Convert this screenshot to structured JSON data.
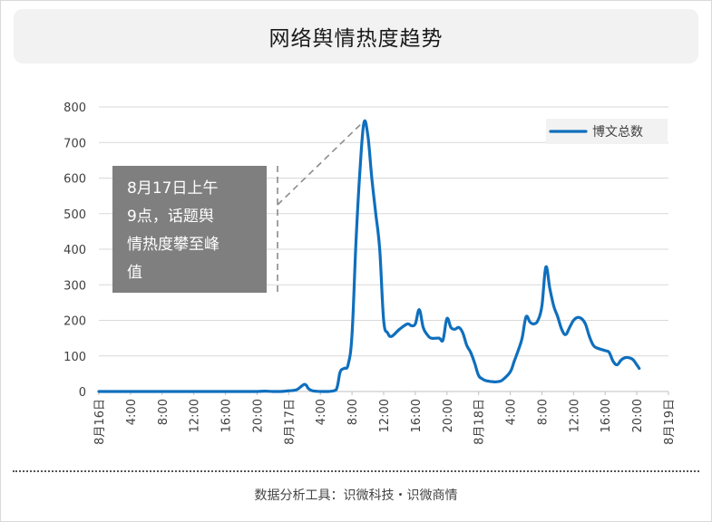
{
  "chart_data": {
    "type": "line",
    "title": "网络舆情热度趋势",
    "xlabel": "",
    "ylabel": "",
    "ylim": [
      0,
      800
    ],
    "yticks": [
      0,
      100,
      200,
      300,
      400,
      500,
      600,
      700,
      800
    ],
    "grid": true,
    "legend_position": "top-right",
    "x_unit": "hour offset from 8月16日 0:00",
    "xlim": [
      0,
      72
    ],
    "xtick_labels": [
      {
        "x": 0,
        "label": "8月16日"
      },
      {
        "x": 4,
        "label": "4:00"
      },
      {
        "x": 8,
        "label": "8:00"
      },
      {
        "x": 12,
        "label": "12:00"
      },
      {
        "x": 16,
        "label": "16:00"
      },
      {
        "x": 20,
        "label": "20:00"
      },
      {
        "x": 24,
        "label": "8月17日"
      },
      {
        "x": 28,
        "label": "4:00"
      },
      {
        "x": 32,
        "label": "8:00"
      },
      {
        "x": 36,
        "label": "12:00"
      },
      {
        "x": 40,
        "label": "16:00"
      },
      {
        "x": 44,
        "label": "20:00"
      },
      {
        "x": 48,
        "label": "8月18日"
      },
      {
        "x": 52,
        "label": "4:00"
      },
      {
        "x": 56,
        "label": "8:00"
      },
      {
        "x": 60,
        "label": "12:00"
      },
      {
        "x": 64,
        "label": "16:00"
      },
      {
        "x": 68,
        "label": "20:00"
      },
      {
        "x": 72,
        "label": "8月19日"
      }
    ],
    "series": [
      {
        "name": "博文总数",
        "color": "#0f6fbd",
        "points": [
          [
            0,
            0
          ],
          [
            2,
            0
          ],
          [
            4,
            0
          ],
          [
            6,
            0
          ],
          [
            8,
            0
          ],
          [
            10,
            0
          ],
          [
            12,
            0
          ],
          [
            14,
            0
          ],
          [
            16,
            0
          ],
          [
            18,
            0
          ],
          [
            20,
            0
          ],
          [
            21,
            1
          ],
          [
            22,
            0
          ],
          [
            23,
            0
          ],
          [
            24,
            2
          ],
          [
            25,
            5
          ],
          [
            26,
            20
          ],
          [
            26.5,
            8
          ],
          [
            27,
            2
          ],
          [
            28,
            0
          ],
          [
            29,
            0
          ],
          [
            30,
            5
          ],
          [
            30.5,
            55
          ],
          [
            31,
            65
          ],
          [
            31.5,
            75
          ],
          [
            32,
            160
          ],
          [
            32.5,
            420
          ],
          [
            33,
            620
          ],
          [
            33.5,
            755
          ],
          [
            34,
            720
          ],
          [
            34.5,
            600
          ],
          [
            35,
            500
          ],
          [
            35.5,
            400
          ],
          [
            36,
            200
          ],
          [
            36.5,
            165
          ],
          [
            37,
            155
          ],
          [
            38,
            175
          ],
          [
            39,
            190
          ],
          [
            39.5,
            185
          ],
          [
            40,
            190
          ],
          [
            40.5,
            230
          ],
          [
            41,
            180
          ],
          [
            41.5,
            160
          ],
          [
            42,
            150
          ],
          [
            43,
            150
          ],
          [
            43.5,
            145
          ],
          [
            44,
            205
          ],
          [
            44.5,
            180
          ],
          [
            45,
            175
          ],
          [
            45.5,
            180
          ],
          [
            46,
            165
          ],
          [
            46.5,
            130
          ],
          [
            47,
            110
          ],
          [
            47.5,
            80
          ],
          [
            48,
            45
          ],
          [
            48.5,
            35
          ],
          [
            49,
            30
          ],
          [
            50,
            27
          ],
          [
            50.5,
            28
          ],
          [
            51,
            32
          ],
          [
            52,
            55
          ],
          [
            52.5,
            85
          ],
          [
            53,
            115
          ],
          [
            53.5,
            150
          ],
          [
            54,
            210
          ],
          [
            54.5,
            195
          ],
          [
            55,
            190
          ],
          [
            55.5,
            200
          ],
          [
            56,
            240
          ],
          [
            56.5,
            350
          ],
          [
            57,
            290
          ],
          [
            57.5,
            240
          ],
          [
            58,
            210
          ],
          [
            58.5,
            175
          ],
          [
            59,
            160
          ],
          [
            59.5,
            180
          ],
          [
            60,
            200
          ],
          [
            60.5,
            208
          ],
          [
            61,
            205
          ],
          [
            61.5,
            190
          ],
          [
            62,
            155
          ],
          [
            62.5,
            130
          ],
          [
            63,
            122
          ],
          [
            64,
            115
          ],
          [
            64.5,
            110
          ],
          [
            65,
            85
          ],
          [
            65.5,
            75
          ],
          [
            66,
            88
          ],
          [
            66.5,
            95
          ],
          [
            67,
            95
          ],
          [
            67.5,
            90
          ],
          [
            68,
            75
          ],
          [
            68.3,
            65
          ]
        ]
      }
    ],
    "annotation": {
      "lines": [
        "8月17日上午",
        "9点，话题舆",
        "情热度攀至峰",
        "值"
      ],
      "target_x": 33.5,
      "target_y": 755
    }
  },
  "source_text": "数据分析工具：识微科技・识微商情",
  "colors": {
    "line": "#0f6fbd",
    "grid": "#d9d9d9",
    "title_bg": "#f2f2f2",
    "annotation_bg": "#7f7f7f",
    "dash": "#8c8c8c"
  }
}
